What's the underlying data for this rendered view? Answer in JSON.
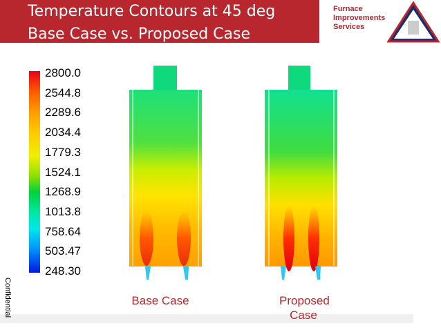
{
  "header": {
    "title_lines": [
      "Temperature Contours at 45 deg",
      "Base Case vs. Proposed Case"
    ],
    "logo_lines": [
      "Furnace",
      "Improvements",
      "Services"
    ]
  },
  "legend": {
    "labels": [
      "2800.0",
      "2544.8",
      "2289.6",
      "2034.4",
      "1779.3",
      "1524.1",
      "1268.9",
      "1013.8",
      "758.64",
      "503.47",
      "248.30"
    ]
  },
  "panels": [
    {
      "label": "Base Case"
    },
    {
      "label": "Proposed Case"
    }
  ],
  "footer": {
    "side_text": "Confidential"
  }
}
